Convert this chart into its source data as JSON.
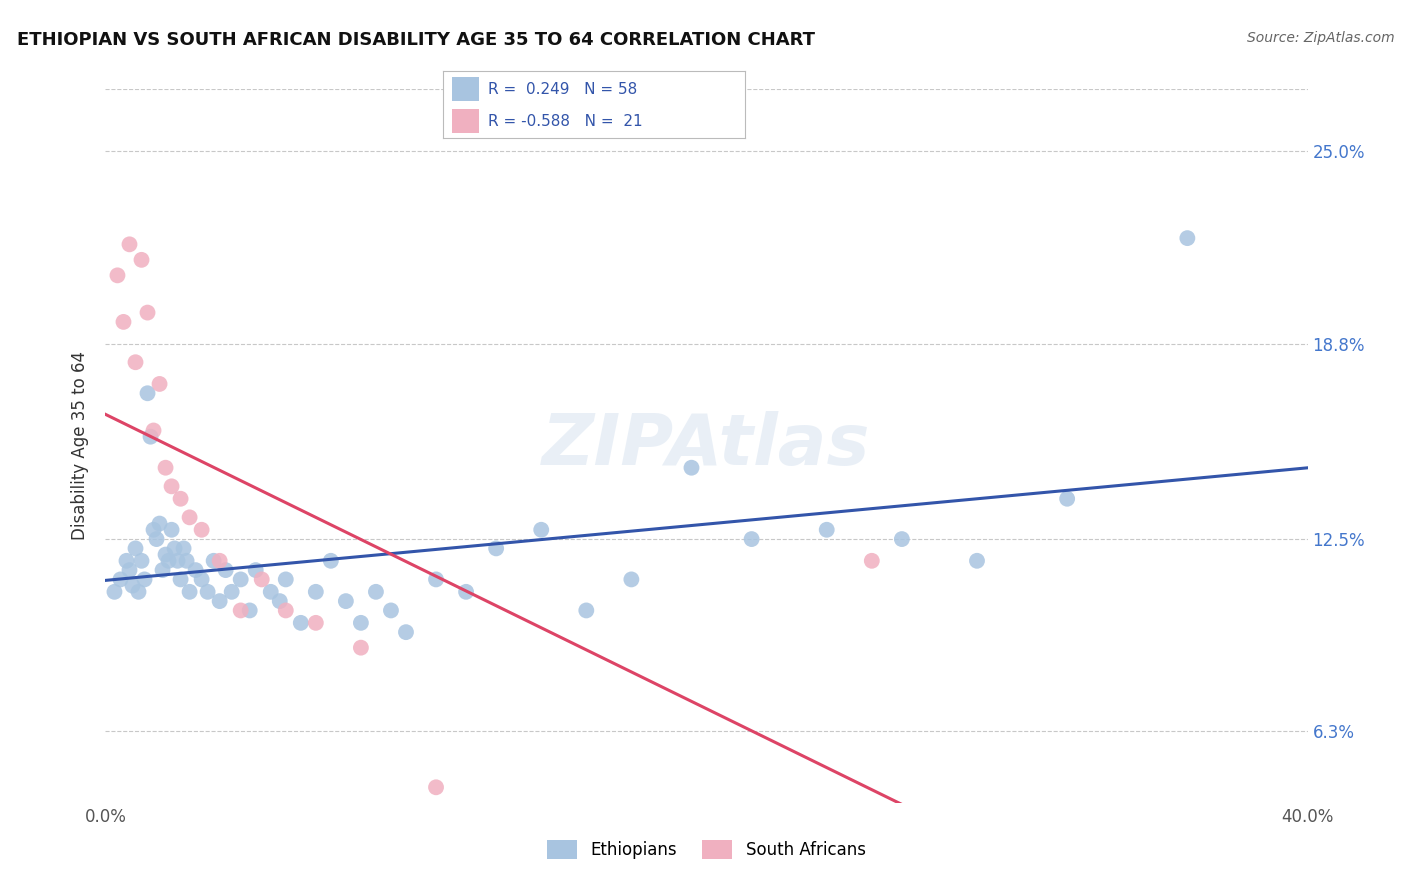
{
  "title": "ETHIOPIAN VS SOUTH AFRICAN DISABILITY AGE 35 TO 64 CORRELATION CHART",
  "source": "Source: ZipAtlas.com",
  "ylabel": "Disability Age 35 to 64",
  "xlim": [
    0.0,
    0.4
  ],
  "ylim": [
    0.04,
    0.27
  ],
  "xtick_positions": [
    0.0,
    0.4
  ],
  "xtick_labels": [
    "0.0%",
    "40.0%"
  ],
  "ytick_values": [
    0.063,
    0.125,
    0.188,
    0.25
  ],
  "ytick_right_labels": [
    "6.3%",
    "12.5%",
    "18.8%",
    "25.0%"
  ],
  "grid_color": "#c8c8c8",
  "background_color": "#ffffff",
  "legend_R_blue": "0.249",
  "legend_N_blue": "58",
  "legend_R_pink": "-0.588",
  "legend_N_pink": "21",
  "blue_color": "#a8c4e0",
  "pink_color": "#f0b0c0",
  "blue_line_color": "#3355aa",
  "pink_line_color": "#dd4466",
  "watermark": "ZIPAtlas",
  "ethiopians_x": [
    0.003,
    0.005,
    0.007,
    0.008,
    0.009,
    0.01,
    0.011,
    0.012,
    0.013,
    0.014,
    0.015,
    0.016,
    0.017,
    0.018,
    0.019,
    0.02,
    0.021,
    0.022,
    0.023,
    0.024,
    0.025,
    0.026,
    0.027,
    0.028,
    0.03,
    0.032,
    0.034,
    0.036,
    0.038,
    0.04,
    0.042,
    0.045,
    0.048,
    0.05,
    0.055,
    0.058,
    0.06,
    0.065,
    0.07,
    0.075,
    0.08,
    0.085,
    0.09,
    0.095,
    0.1,
    0.11,
    0.12,
    0.13,
    0.145,
    0.16,
    0.175,
    0.195,
    0.215,
    0.24,
    0.265,
    0.29,
    0.32,
    0.36
  ],
  "ethiopians_y": [
    0.108,
    0.112,
    0.118,
    0.115,
    0.11,
    0.122,
    0.108,
    0.118,
    0.112,
    0.172,
    0.158,
    0.128,
    0.125,
    0.13,
    0.115,
    0.12,
    0.118,
    0.128,
    0.122,
    0.118,
    0.112,
    0.122,
    0.118,
    0.108,
    0.115,
    0.112,
    0.108,
    0.118,
    0.105,
    0.115,
    0.108,
    0.112,
    0.102,
    0.115,
    0.108,
    0.105,
    0.112,
    0.098,
    0.108,
    0.118,
    0.105,
    0.098,
    0.108,
    0.102,
    0.095,
    0.112,
    0.108,
    0.122,
    0.128,
    0.102,
    0.112,
    0.148,
    0.125,
    0.128,
    0.125,
    0.118,
    0.138,
    0.222
  ],
  "southafrican_x": [
    0.004,
    0.006,
    0.008,
    0.01,
    0.012,
    0.014,
    0.016,
    0.018,
    0.02,
    0.022,
    0.025,
    0.028,
    0.032,
    0.038,
    0.045,
    0.052,
    0.06,
    0.07,
    0.085,
    0.11,
    0.255
  ],
  "southafrican_y": [
    0.21,
    0.195,
    0.22,
    0.182,
    0.215,
    0.198,
    0.16,
    0.175,
    0.148,
    0.142,
    0.138,
    0.132,
    0.128,
    0.118,
    0.102,
    0.112,
    0.102,
    0.098,
    0.09,
    0.045,
    0.118
  ]
}
